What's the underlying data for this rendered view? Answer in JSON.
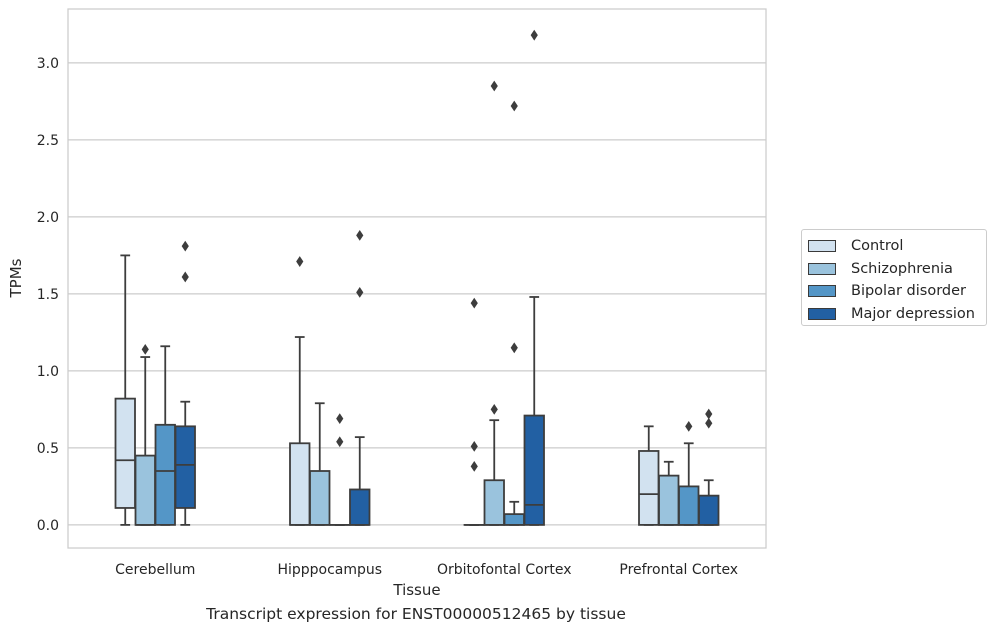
{
  "chart_data": {
    "type": "box",
    "xlabel": "Tissue",
    "ylabel": "TPMs",
    "ylim": [
      -0.15,
      3.35
    ],
    "yticks": [
      "0.0",
      "0.5",
      "1.0",
      "1.5",
      "2.0",
      "2.5",
      "3.0"
    ],
    "categories": [
      "Cerebellum",
      "Hipppocampus",
      "Orbitofontal Cortex",
      "Prefrontal Cortex"
    ],
    "grid": "horizontal",
    "legend_position": "right",
    "series": [
      {
        "name": "Control",
        "color": "#d2e2f0",
        "boxes": [
          {
            "min": 0.0,
            "q1": 0.11,
            "median": 0.42,
            "q3": 0.82,
            "max": 1.75,
            "outliers": []
          },
          {
            "min": 0.0,
            "q1": 0.0,
            "median": 0.0,
            "q3": 0.53,
            "max": 1.22,
            "outliers": [
              1.71
            ]
          },
          {
            "min": 0.0,
            "q1": 0.0,
            "median": 0.0,
            "q3": 0.0,
            "max": 0.0,
            "outliers": [
              0.38,
              0.51,
              1.44
            ]
          },
          {
            "min": 0.0,
            "q1": 0.0,
            "median": 0.2,
            "q3": 0.48,
            "max": 0.64,
            "outliers": []
          }
        ]
      },
      {
        "name": "Schizophrenia",
        "color": "#9ac3dd",
        "boxes": [
          {
            "min": 0.0,
            "q1": 0.0,
            "median": 0.0,
            "q3": 0.45,
            "max": 1.09,
            "outliers": [
              1.14
            ]
          },
          {
            "min": 0.0,
            "q1": 0.0,
            "median": 0.0,
            "q3": 0.35,
            "max": 0.79,
            "outliers": []
          },
          {
            "min": 0.0,
            "q1": 0.0,
            "median": 0.0,
            "q3": 0.29,
            "max": 0.68,
            "outliers": [
              0.75,
              2.85
            ]
          },
          {
            "min": 0.0,
            "q1": 0.0,
            "median": 0.0,
            "q3": 0.32,
            "max": 0.41,
            "outliers": []
          }
        ]
      },
      {
        "name": "Bipolar disorder",
        "color": "#5496c7",
        "boxes": [
          {
            "min": 0.0,
            "q1": 0.0,
            "median": 0.35,
            "q3": 0.65,
            "max": 1.16,
            "outliers": []
          },
          {
            "min": 0.0,
            "q1": 0.0,
            "median": 0.0,
            "q3": 0.0,
            "max": 0.0,
            "outliers": [
              0.54,
              0.69
            ]
          },
          {
            "min": 0.0,
            "q1": 0.0,
            "median": 0.0,
            "q3": 0.07,
            "max": 0.15,
            "outliers": [
              1.15,
              2.72
            ]
          },
          {
            "min": 0.0,
            "q1": 0.0,
            "median": 0.0,
            "q3": 0.25,
            "max": 0.53,
            "outliers": [
              0.64
            ]
          }
        ]
      },
      {
        "name": "Major depression",
        "color": "#2260a3",
        "boxes": [
          {
            "min": 0.0,
            "q1": 0.11,
            "median": 0.39,
            "q3": 0.64,
            "max": 0.8,
            "outliers": [
              1.61,
              1.81
            ]
          },
          {
            "min": 0.0,
            "q1": 0.0,
            "median": 0.0,
            "q3": 0.23,
            "max": 0.57,
            "outliers": [
              1.51,
              1.88
            ]
          },
          {
            "min": 0.0,
            "q1": 0.0,
            "median": 0.13,
            "q3": 0.71,
            "max": 1.48,
            "outliers": [
              3.18
            ]
          },
          {
            "min": 0.0,
            "q1": 0.0,
            "median": 0.0,
            "q3": 0.19,
            "max": 0.29,
            "outliers": [
              0.66,
              0.72
            ]
          }
        ]
      }
    ],
    "caption": "Transcript expression for ENST00000512465 by tissue"
  }
}
